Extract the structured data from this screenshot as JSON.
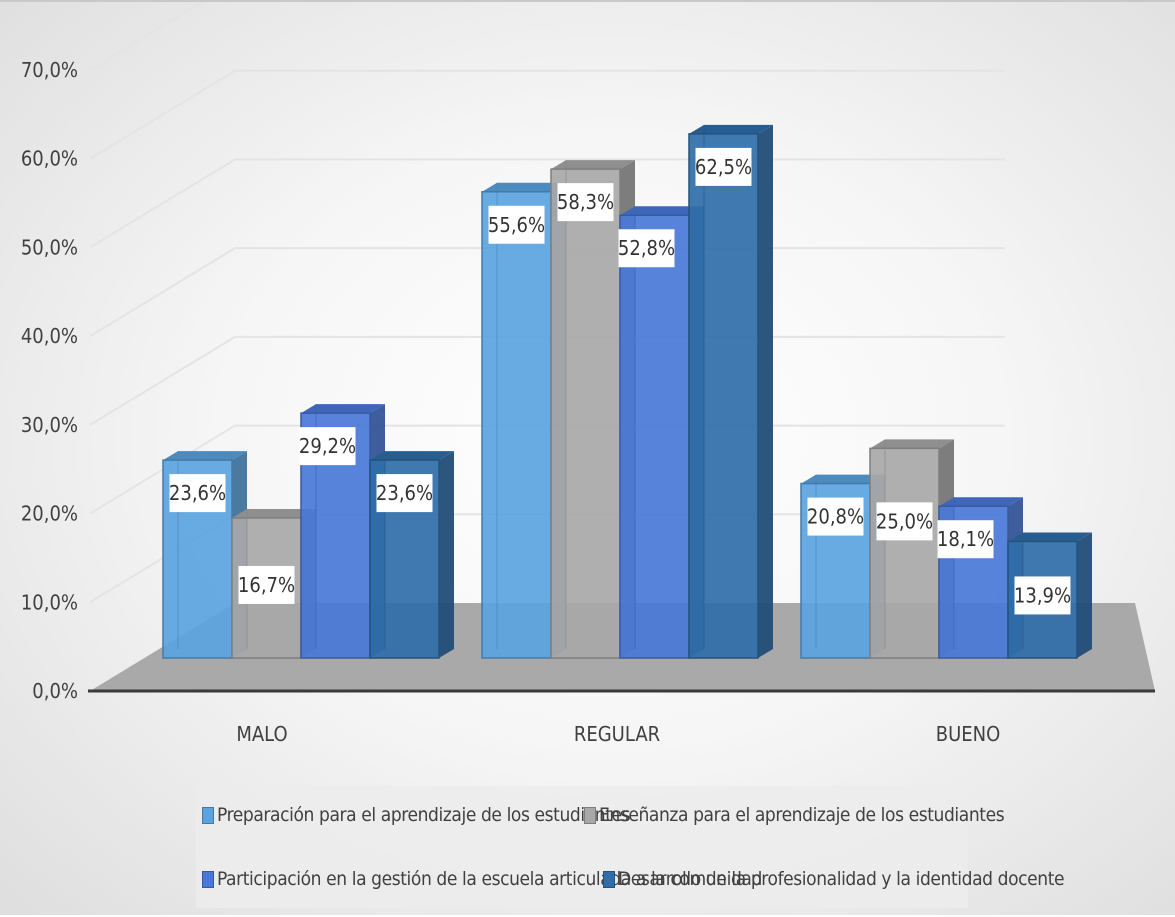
{
  "chart_data": {
    "type": "bar",
    "categories": [
      "MALO",
      "REGULAR",
      "BUENO"
    ],
    "series": [
      {
        "name": "Preparación para el aprendizaje de los estudiantes",
        "values": [
          23.6,
          55.6,
          20.8
        ],
        "labels": [
          "23,6%",
          "55,6%",
          "20,8%"
        ],
        "color": "#5ba3e0"
      },
      {
        "name": "Enseñanza para el aprendizaje de los estudiantes",
        "values": [
          16.7,
          58.3,
          25.0
        ],
        "labels": [
          "16,7%",
          "58,3%",
          "25,0%"
        ],
        "color": "#a8a8a8"
      },
      {
        "name": "Participación en la gestión de la escuela articulada a la comunidad",
        "values": [
          29.2,
          52.8,
          18.1
        ],
        "labels": [
          "29,2%",
          "52,8%",
          "18,1%"
        ],
        "color": "#4a78d8"
      },
      {
        "name": "Desarrollo de la profesionalidad y la identidad docente",
        "values": [
          23.6,
          62.5,
          13.9
        ],
        "labels": [
          "23,6%",
          "62,5%",
          "13,9%"
        ],
        "color": "#2f6ea8"
      }
    ],
    "yticks": [
      "0,0%",
      "10,0%",
      "20,0%",
      "30,0%",
      "40,0%",
      "50,0%",
      "60,0%",
      "70,0%"
    ],
    "ylim": [
      0,
      70
    ],
    "grid": true,
    "legend_position": "bottom",
    "three_d": true
  }
}
